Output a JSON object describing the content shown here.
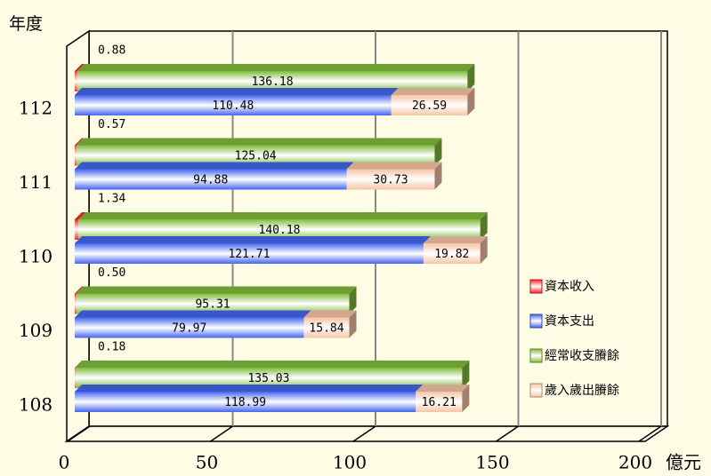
{
  "chart_data": {
    "type": "bar3d",
    "y_label": "年度",
    "x_label": "億元",
    "categories": [
      "108",
      "109",
      "110",
      "111",
      "112"
    ],
    "series": [
      {
        "name": "資本收入",
        "color": "#ff2020",
        "values": [
          0.18,
          0.5,
          1.34,
          0.57,
          0.88
        ],
        "value_labels": [
          "0.18",
          "0.50",
          "1.34",
          "0.57",
          "0.88"
        ],
        "row": "upper"
      },
      {
        "name": "資本支出",
        "color": "#4466ee",
        "values": [
          118.99,
          79.97,
          121.71,
          94.88,
          110.48
        ],
        "row": "lower"
      },
      {
        "name": "經常收支賸餘",
        "color": "#80bb3c",
        "values": [
          135.03,
          95.31,
          140.18,
          125.04,
          136.18
        ],
        "row": "upper"
      },
      {
        "name": "歲入歲出賸餘",
        "color": "#f7c4a4",
        "values": [
          16.21,
          15.84,
          19.82,
          30.73,
          26.59
        ],
        "row": "lower"
      }
    ],
    "xlim": [
      0,
      200
    ],
    "xticks": [
      0,
      50,
      100,
      150,
      200
    ],
    "grid": true
  }
}
